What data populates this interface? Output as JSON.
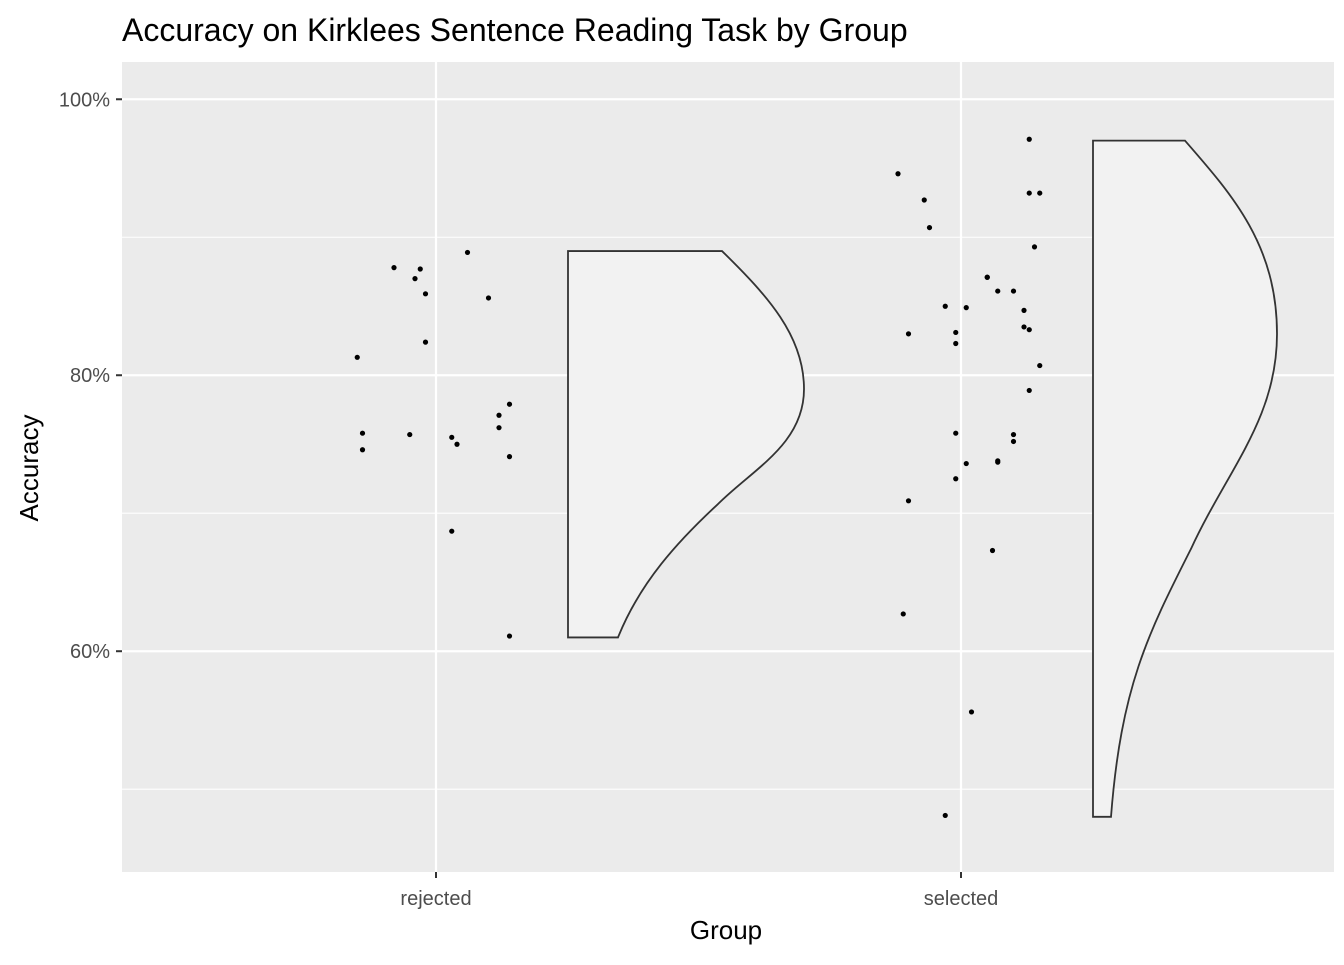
{
  "chart_data": {
    "type": "raincloud",
    "title": "Accuracy on Kirklees Sentence Reading Task by Group",
    "xlabel": "Group",
    "ylabel": "Accuracy",
    "categories": [
      "rejected",
      "selected"
    ],
    "y_axis": {
      "range": [
        0.44,
        1.027
      ],
      "ticks": [
        0.6,
        0.8,
        1.0
      ],
      "tick_labels": [
        "60%",
        "80%",
        "100%"
      ],
      "minor_ticks": [
        0.5,
        0.7,
        0.9
      ]
    },
    "grid": true,
    "legend": "none",
    "colors": {
      "panel_background": "#ebebeb",
      "grid_line": "#ffffff",
      "point": "#000000",
      "violin_fill": "#f2f2f2",
      "violin_stroke": "#333333"
    },
    "series": [
      {
        "category": "rejected",
        "points": [
          {
            "jitter": -0.15,
            "y": 0.813
          },
          {
            "jitter": -0.08,
            "y": 0.878
          },
          {
            "jitter": -0.05,
            "y": 0.757
          },
          {
            "jitter": -0.04,
            "y": 0.87
          },
          {
            "jitter": -0.03,
            "y": 0.877
          },
          {
            "jitter": -0.02,
            "y": 0.859
          },
          {
            "jitter": -0.02,
            "y": 0.824
          },
          {
            "jitter": -0.14,
            "y": 0.758
          },
          {
            "jitter": -0.14,
            "y": 0.746
          },
          {
            "jitter": 0.03,
            "y": 0.755
          },
          {
            "jitter": 0.04,
            "y": 0.75
          },
          {
            "jitter": 0.03,
            "y": 0.687
          },
          {
            "jitter": 0.06,
            "y": 0.889
          },
          {
            "jitter": 0.1,
            "y": 0.856
          },
          {
            "jitter": 0.12,
            "y": 0.771
          },
          {
            "jitter": 0.12,
            "y": 0.762
          },
          {
            "jitter": 0.14,
            "y": 0.779
          },
          {
            "jitter": 0.14,
            "y": 0.741
          },
          {
            "jitter": 0.14,
            "y": 0.611
          }
        ],
        "density_range": [
          0.61,
          0.89
        ],
        "density_peak": 0.79
      },
      {
        "category": "selected",
        "points": [
          {
            "jitter": -0.12,
            "y": 0.946
          },
          {
            "jitter": -0.07,
            "y": 0.927
          },
          {
            "jitter": -0.06,
            "y": 0.907
          },
          {
            "jitter": -0.1,
            "y": 0.83
          },
          {
            "jitter": -0.1,
            "y": 0.709
          },
          {
            "jitter": -0.11,
            "y": 0.627
          },
          {
            "jitter": -0.03,
            "y": 0.85
          },
          {
            "jitter": -0.01,
            "y": 0.831
          },
          {
            "jitter": -0.01,
            "y": 0.823
          },
          {
            "jitter": -0.01,
            "y": 0.758
          },
          {
            "jitter": 0.01,
            "y": 0.849
          },
          {
            "jitter": 0.01,
            "y": 0.736
          },
          {
            "jitter": -0.01,
            "y": 0.725
          },
          {
            "jitter": 0.05,
            "y": 0.871
          },
          {
            "jitter": 0.05,
            "y": 0.871
          },
          {
            "jitter": 0.07,
            "y": 0.861
          },
          {
            "jitter": 0.1,
            "y": 0.861
          },
          {
            "jitter": 0.07,
            "y": 0.738
          },
          {
            "jitter": 0.07,
            "y": 0.737
          },
          {
            "jitter": 0.06,
            "y": 0.673
          },
          {
            "jitter": 0.02,
            "y": 0.556
          },
          {
            "jitter": -0.03,
            "y": 0.481
          },
          {
            "jitter": 0.13,
            "y": 0.971
          },
          {
            "jitter": 0.13,
            "y": 0.932
          },
          {
            "jitter": 0.15,
            "y": 0.932
          },
          {
            "jitter": 0.14,
            "y": 0.893
          },
          {
            "jitter": 0.12,
            "y": 0.847
          },
          {
            "jitter": 0.12,
            "y": 0.835
          },
          {
            "jitter": 0.13,
            "y": 0.833
          },
          {
            "jitter": 0.15,
            "y": 0.807
          },
          {
            "jitter": 0.13,
            "y": 0.789
          },
          {
            "jitter": 0.1,
            "y": 0.757
          },
          {
            "jitter": 0.1,
            "y": 0.752
          }
        ],
        "density_range": [
          0.48,
          0.97
        ],
        "density_peak": 0.83
      }
    ]
  }
}
